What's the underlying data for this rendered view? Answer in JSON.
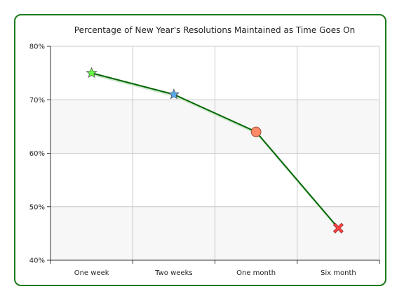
{
  "chart_data": {
    "type": "line",
    "title": "Percentage of New Year's Resolutions Maintained as Time Goes On",
    "xlabel": "",
    "ylabel": "",
    "categories": [
      "One week",
      "Two weeks",
      "One month",
      "Six month"
    ],
    "values": [
      75,
      71,
      64,
      46
    ],
    "ylim": [
      40,
      80
    ],
    "yticks": [
      40,
      50,
      60,
      70,
      80
    ],
    "ytick_labels": [
      "40%",
      "50%",
      "60%",
      "70%",
      "80%"
    ],
    "grid": true,
    "legend": "none",
    "markers": [
      "star",
      "star",
      "circle",
      "x"
    ],
    "marker_colors": [
      "#66ff44",
      "#55aaee",
      "#ff8866",
      "#ff4444"
    ],
    "line_color": "#006600",
    "frame_color": "#1a7a1a"
  }
}
